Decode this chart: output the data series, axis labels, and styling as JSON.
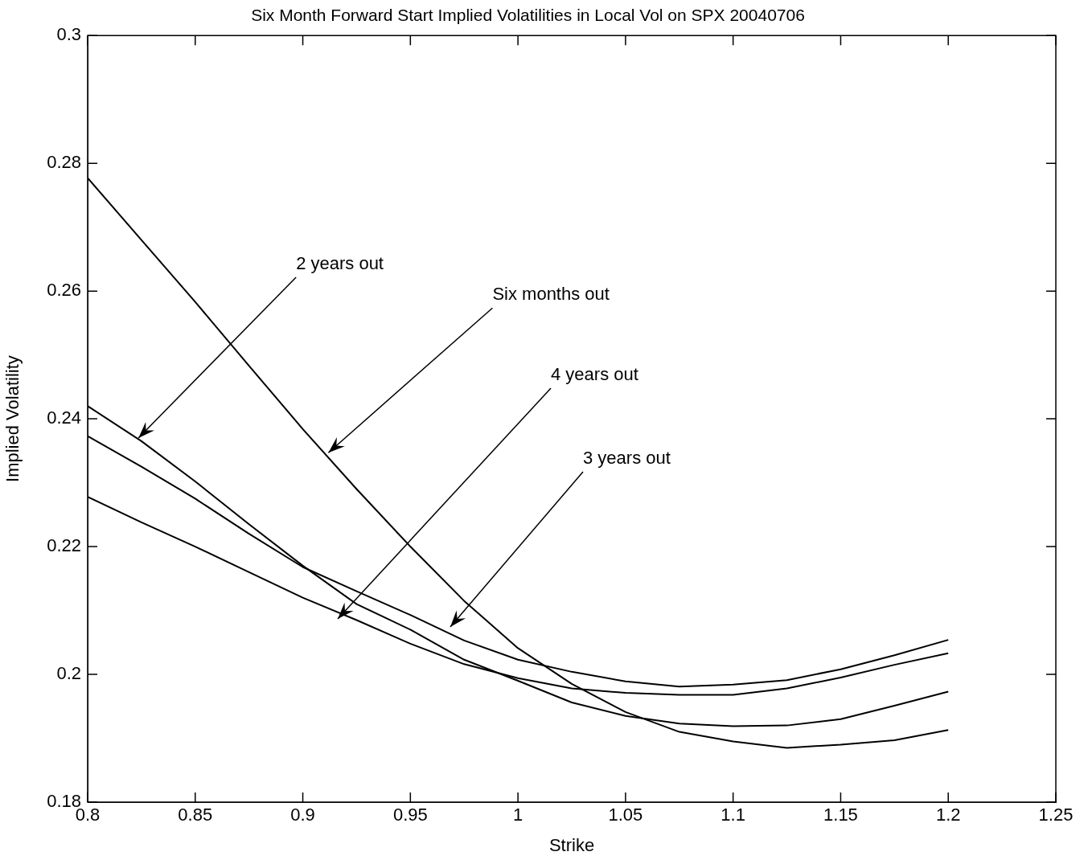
{
  "chart_data": {
    "type": "line",
    "title": "Six Month Forward Start Implied Volatilities in Local Vol on SPX 20040706",
    "xlabel": "Strike",
    "ylabel": "Implied Volatility",
    "x": [
      0.8,
      0.825,
      0.85,
      0.875,
      0.9,
      0.925,
      0.95,
      0.975,
      1.0,
      1.025,
      1.05,
      1.075,
      1.1,
      1.125,
      1.15,
      1.175,
      1.2
    ],
    "series": [
      {
        "color": "#000000",
        "values": [
          0.2777,
          0.268,
          0.2583,
          0.2483,
          0.2384,
          0.229,
          0.22,
          0.2115,
          0.2041,
          0.1985,
          0.1941,
          0.191,
          0.1895,
          0.1885,
          0.189,
          0.1897,
          0.1913
        ]
      },
      {
        "color": "#000000",
        "values": [
          0.242,
          0.2365,
          0.2302,
          0.2235,
          0.217,
          0.211,
          0.207,
          0.2023,
          0.199,
          0.1956,
          0.1935,
          0.1923,
          0.1919,
          0.192,
          0.193,
          0.1951,
          0.1973
        ]
      },
      {
        "color": "#000000",
        "values": [
          0.2373,
          0.2325,
          0.2275,
          0.222,
          0.2168,
          0.213,
          0.2093,
          0.2053,
          0.2023,
          0.2004,
          0.1989,
          0.1981,
          0.1984,
          0.1991,
          0.2008,
          0.203,
          0.2054
        ]
      },
      {
        "color": "#000000",
        "values": [
          0.2278,
          0.2238,
          0.22,
          0.216,
          0.212,
          0.2085,
          0.2048,
          0.2016,
          0.1994,
          0.1978,
          0.1971,
          0.1968,
          0.1968,
          0.1978,
          0.1995,
          0.2015,
          0.2033
        ]
      }
    ],
    "annotations": [
      {
        "text": "2 years out",
        "x": 0.8236,
        "y": 0.237
      },
      {
        "text": "Six months out",
        "x": 0.9119,
        "y": 0.2347
      },
      "4 years out",
      "3 years out"
    ],
    "xlim": [
      0.8,
      1.25
    ],
    "xticks": [
      0.8,
      0.85,
      0.9,
      0.95,
      1,
      1.05,
      1.1,
      1.15,
      1.2,
      1.25
    ],
    "ylim": [
      0.18,
      0.3
    ],
    "yticks": [
      0.18,
      0.2,
      0.22,
      0.24,
      0.26,
      0.28,
      0.3
    ],
    "grid": false,
    "legend": false,
    "marker": "none",
    "line_style": "solid"
  }
}
